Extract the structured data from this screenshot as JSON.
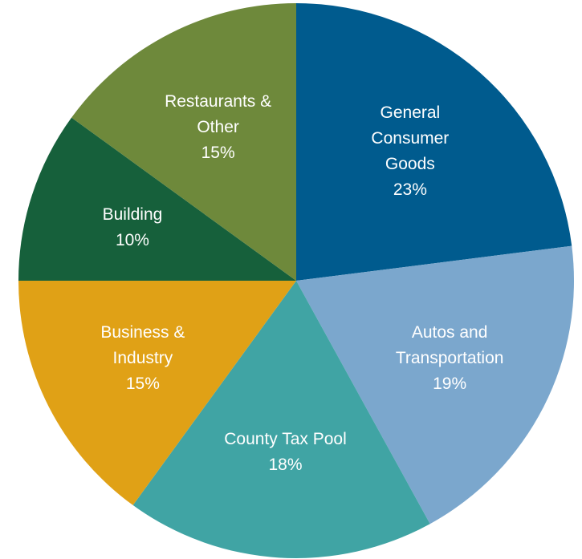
{
  "chart_data": {
    "type": "pie",
    "categories": [
      "General Consumer Goods",
      "Autos and Transportation",
      "County Tax Pool",
      "Business & Industry",
      "Building",
      "Restaurants & Other"
    ],
    "values": [
      23,
      19,
      18,
      15,
      10,
      15
    ],
    "value_labels": [
      "23%",
      "19%",
      "18%",
      "15%",
      "10%",
      "15%"
    ],
    "colors": [
      "#005b8e",
      "#7ba7cd",
      "#40a4a4",
      "#e0a116",
      "#16603b",
      "#6e893b"
    ]
  }
}
